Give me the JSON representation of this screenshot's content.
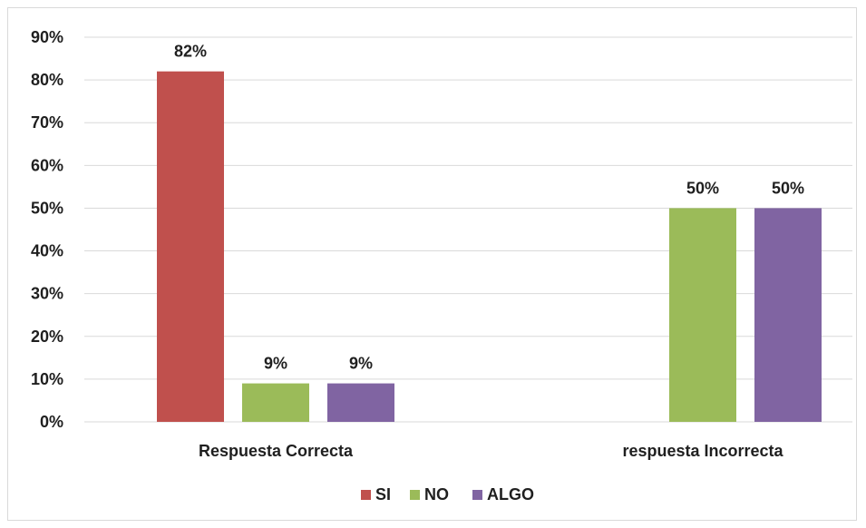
{
  "chart_data": {
    "type": "bar",
    "title": "",
    "xlabel": "",
    "ylabel": "",
    "categories": [
      "Respuesta Correcta",
      "respuesta Incorrecta"
    ],
    "series": [
      {
        "name": "SI",
        "values": [
          82,
          0
        ],
        "color": "#C0504D"
      },
      {
        "name": "NO",
        "values": [
          9,
          50
        ],
        "color": "#9BBB59"
      },
      {
        "name": "ALGO",
        "values": [
          9,
          50
        ],
        "color": "#8064A2"
      }
    ],
    "data_labels": [
      [
        "82%",
        ""
      ],
      [
        "9%",
        "50%"
      ],
      [
        "9%",
        "50%"
      ]
    ],
    "ylim": [
      0,
      90
    ],
    "yticks": [
      "0%",
      "10%",
      "20%",
      "30%",
      "40%",
      "50%",
      "60%",
      "70%",
      "80%",
      "90%"
    ],
    "grid": true,
    "legend_position": "bottom",
    "gridline_color": "#d9d9d9"
  }
}
